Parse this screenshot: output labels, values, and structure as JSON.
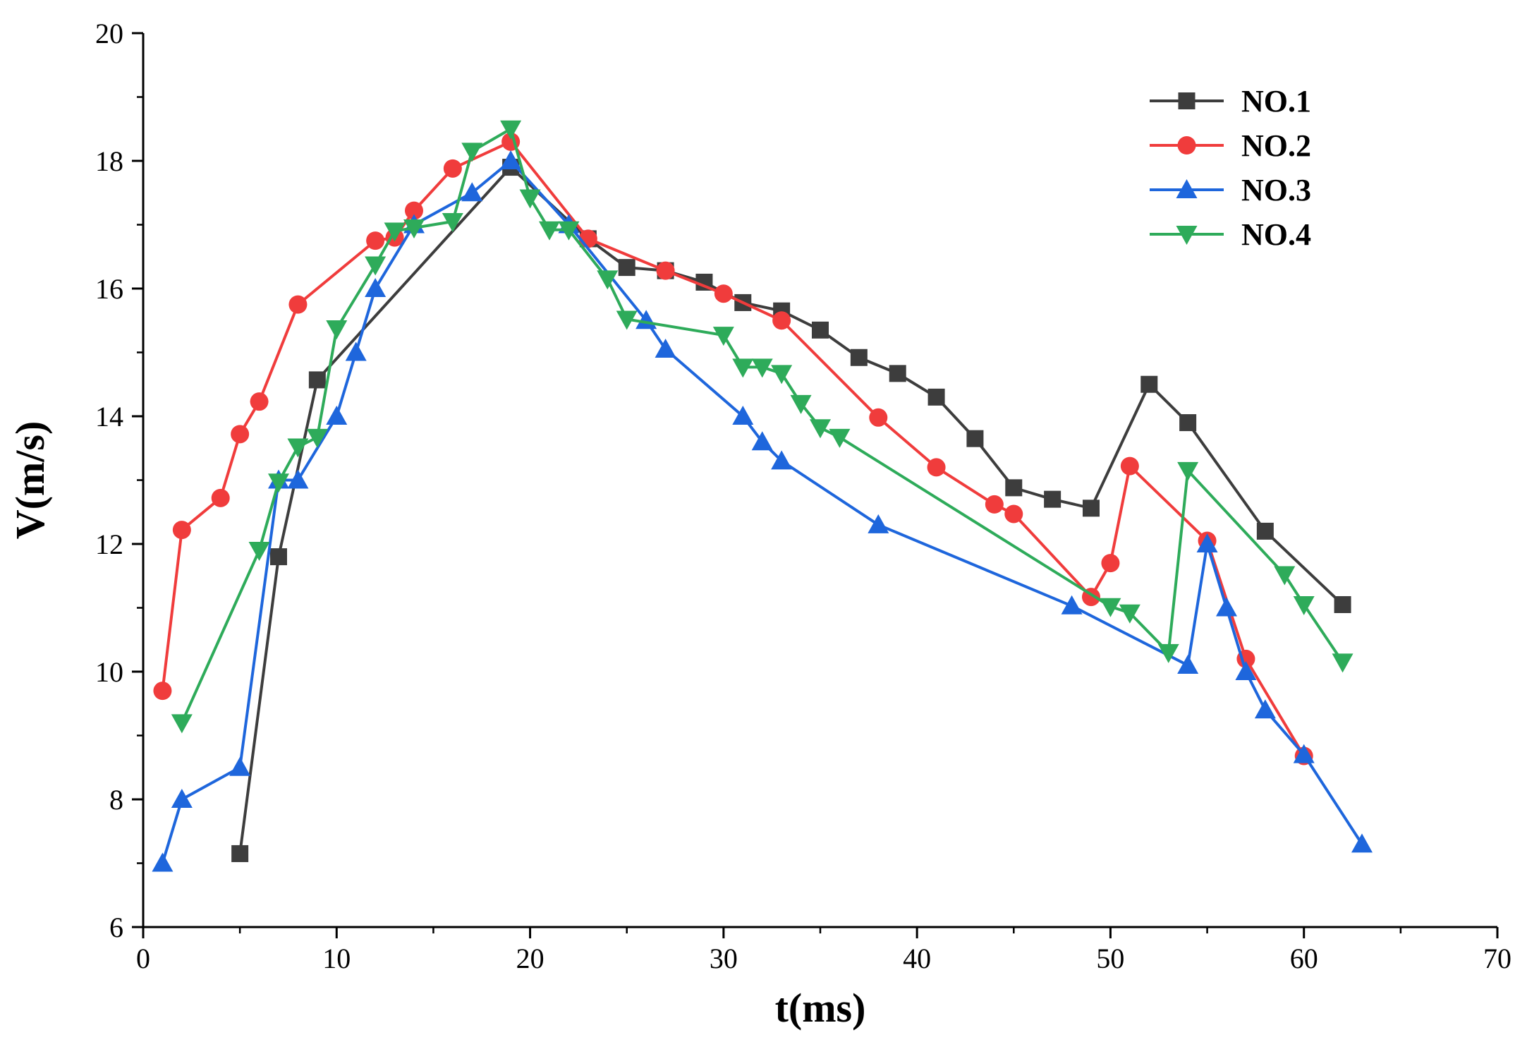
{
  "chart_data": {
    "type": "line",
    "title": "",
    "xlabel": "t(ms)",
    "ylabel": "V(m/s)",
    "xlim": [
      0,
      70
    ],
    "ylim": [
      6,
      20
    ],
    "xticks": [
      0,
      10,
      20,
      30,
      40,
      50,
      60,
      70
    ],
    "yticks": [
      6,
      8,
      10,
      12,
      14,
      16,
      18,
      20
    ],
    "grid": false,
    "legend": {
      "position": "top-right"
    },
    "series": [
      {
        "name": "NO.1",
        "color": "#3d3d3d",
        "marker": "square",
        "points": [
          [
            5,
            7.15
          ],
          [
            7,
            11.8
          ],
          [
            9,
            14.57
          ],
          [
            19,
            17.9
          ],
          [
            23,
            16.78
          ],
          [
            25,
            16.33
          ],
          [
            27,
            16.28
          ],
          [
            29,
            16.1
          ],
          [
            31,
            15.78
          ],
          [
            33,
            15.65
          ],
          [
            35,
            15.35
          ],
          [
            37,
            14.92
          ],
          [
            39,
            14.67
          ],
          [
            41,
            14.3
          ],
          [
            43,
            13.65
          ],
          [
            45,
            12.88
          ],
          [
            47,
            12.7
          ],
          [
            49,
            12.56
          ],
          [
            52,
            14.5
          ],
          [
            54,
            13.9
          ],
          [
            58,
            12.2
          ],
          [
            62,
            11.05
          ]
        ]
      },
      {
        "name": "NO.2",
        "color": "#f03c3c",
        "marker": "circle",
        "points": [
          [
            1,
            9.7
          ],
          [
            2,
            12.22
          ],
          [
            4,
            12.72
          ],
          [
            5,
            13.72
          ],
          [
            6,
            14.23
          ],
          [
            8,
            15.75
          ],
          [
            12,
            16.75
          ],
          [
            13,
            16.8
          ],
          [
            14,
            17.22
          ],
          [
            16,
            17.88
          ],
          [
            19,
            18.3
          ],
          [
            23,
            16.78
          ],
          [
            27,
            16.28
          ],
          [
            30,
            15.92
          ],
          [
            33,
            15.5
          ],
          [
            38,
            13.98
          ],
          [
            41,
            13.2
          ],
          [
            44,
            12.62
          ],
          [
            45,
            12.47
          ],
          [
            49,
            11.17
          ],
          [
            50,
            11.7
          ],
          [
            51,
            13.22
          ],
          [
            55,
            12.05
          ],
          [
            57,
            10.2
          ],
          [
            60,
            8.68
          ]
        ]
      },
      {
        "name": "NO.3",
        "color": "#1e66dc",
        "marker": "triangle-up",
        "points": [
          [
            1,
            7.0
          ],
          [
            2,
            8.0
          ],
          [
            5,
            8.5
          ],
          [
            7,
            13.0
          ],
          [
            8,
            13.0
          ],
          [
            10,
            14.0
          ],
          [
            11,
            15.0
          ],
          [
            12,
            16.0
          ],
          [
            14,
            17.0
          ],
          [
            17,
            17.5
          ],
          [
            19,
            18.0
          ],
          [
            22,
            17.0
          ],
          [
            26,
            15.5
          ],
          [
            27,
            15.05
          ],
          [
            31,
            14.0
          ],
          [
            32,
            13.6
          ],
          [
            33,
            13.3
          ],
          [
            38,
            12.3
          ],
          [
            48,
            11.03
          ],
          [
            54,
            10.1
          ],
          [
            55,
            12.0
          ],
          [
            56,
            11.0
          ],
          [
            57,
            10.0
          ],
          [
            58,
            9.4
          ],
          [
            60,
            8.7
          ],
          [
            63,
            7.3
          ]
        ]
      },
      {
        "name": "NO.4",
        "color": "#2eab5a",
        "marker": "triangle-down",
        "points": [
          [
            2,
            9.2
          ],
          [
            6,
            11.9
          ],
          [
            7,
            12.97
          ],
          [
            8,
            13.52
          ],
          [
            9,
            13.67
          ],
          [
            10,
            15.37
          ],
          [
            12,
            16.37
          ],
          [
            13,
            16.9
          ],
          [
            14,
            16.95
          ],
          [
            16,
            17.05
          ],
          [
            17,
            18.15
          ],
          [
            19,
            18.5
          ],
          [
            20,
            17.42
          ],
          [
            21,
            16.92
          ],
          [
            22,
            16.92
          ],
          [
            24,
            16.15
          ],
          [
            25,
            15.52
          ],
          [
            30,
            15.27
          ],
          [
            31,
            14.77
          ],
          [
            32,
            14.77
          ],
          [
            33,
            14.67
          ],
          [
            34,
            14.2
          ],
          [
            35,
            13.82
          ],
          [
            36,
            13.67
          ],
          [
            50,
            11.02
          ],
          [
            51,
            10.92
          ],
          [
            53,
            10.3
          ],
          [
            54,
            13.15
          ],
          [
            59,
            11.52
          ],
          [
            60,
            11.05
          ],
          [
            62,
            10.15
          ]
        ]
      }
    ]
  }
}
